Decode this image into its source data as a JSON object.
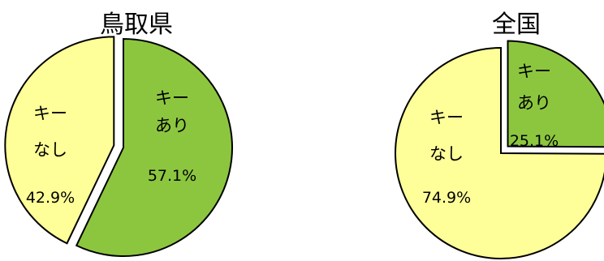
{
  "colors": {
    "with_key": "#8cc63f",
    "without_key": "#ffff99",
    "outline": "#000000",
    "background": "#ffffff"
  },
  "chart_data": [
    {
      "type": "pie",
      "title": "鳥取県",
      "slices": [
        {
          "label_line1": "キー",
          "label_line2": "あり",
          "value": 57.1,
          "value_label": "57.1%",
          "color": "#8cc63f",
          "exploded": false
        },
        {
          "label_line1": "キー",
          "label_line2": "なし",
          "value": 42.9,
          "value_label": "42.9%",
          "color": "#ffff99",
          "exploded": true
        }
      ]
    },
    {
      "type": "pie",
      "title": "全国",
      "slices": [
        {
          "label_line1": "キー",
          "label_line2": "あり",
          "value": 25.1,
          "value_label": "25.1%",
          "color": "#8cc63f",
          "exploded": true
        },
        {
          "label_line1": "キー",
          "label_line2": "なし",
          "value": 74.9,
          "value_label": "74.9%",
          "color": "#ffff99",
          "exploded": false
        }
      ]
    }
  ]
}
